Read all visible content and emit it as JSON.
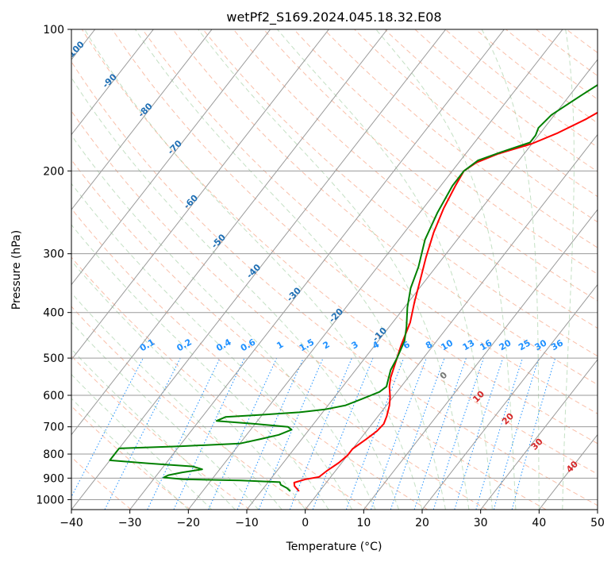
{
  "chart_data": {
    "type": "line",
    "title": "wetPf2_S169.2024.045.18.32.E08",
    "xlabel": "Temperature (°C)",
    "ylabel": "Pressure (hPa)",
    "xlim": [
      -40,
      50
    ],
    "ylim": [
      1050,
      100
    ],
    "y_scale": "log",
    "x_ticks": [
      "−40",
      "−30",
      "−20",
      "−10",
      "0",
      "10",
      "20",
      "30",
      "40",
      "50"
    ],
    "x_tick_values": [
      -40,
      -30,
      -20,
      -10,
      0,
      10,
      20,
      30,
      40,
      50
    ],
    "y_ticks": [
      "1000",
      "900",
      "800",
      "700",
      "600",
      "500",
      "400",
      "300",
      "200",
      "100"
    ],
    "y_tick_values": [
      1000,
      900,
      800,
      700,
      600,
      500,
      400,
      300,
      200,
      100
    ],
    "grid": true,
    "background_lines": {
      "isotherm_labels": [
        "-100",
        "-90",
        "-80",
        "-70",
        "-60",
        "-50",
        "-40",
        "-30",
        "-20",
        "-10"
      ],
      "isotherm_label_values": [
        -100,
        -90,
        -80,
        -70,
        -60,
        -50,
        -40,
        -30,
        -20,
        -10
      ],
      "mixing_ratio_labels": [
        "0.1",
        "0.2",
        "0.4",
        "0.6",
        "1",
        "1.5",
        "2",
        "3",
        "4",
        "6",
        "8",
        "10",
        "13",
        "16",
        "20",
        "25",
        "30",
        "36"
      ],
      "mixing_ratio_values": [
        0.1,
        0.2,
        0.4,
        0.6,
        1,
        1.5,
        2,
        3,
        4,
        6,
        8,
        10,
        13,
        16,
        20,
        25,
        30,
        36
      ],
      "moist_adiabat_labels": [
        "0",
        "10",
        "20",
        "30",
        "40"
      ],
      "moist_adiabat_values": [
        0,
        10,
        20,
        30,
        40
      ]
    },
    "series": [
      {
        "color": "#ff0000",
        "points": [
          [
            -3.5,
            960
          ],
          [
            -5,
            935
          ],
          [
            -5.5,
            920
          ],
          [
            -4,
            905
          ],
          [
            -2,
            895
          ],
          [
            -1.5,
            870
          ],
          [
            -0.5,
            835
          ],
          [
            0,
            805
          ],
          [
            0,
            780
          ],
          [
            1,
            745
          ],
          [
            1.8,
            715
          ],
          [
            2,
            690
          ],
          [
            1.5,
            665
          ],
          [
            0.5,
            630
          ],
          [
            -0.5,
            605
          ],
          [
            -2,
            575
          ],
          [
            -3,
            550
          ],
          [
            -4.5,
            500
          ],
          [
            -5.5,
            470
          ],
          [
            -7,
            420
          ],
          [
            -9,
            380
          ],
          [
            -11,
            340
          ],
          [
            -13,
            305
          ],
          [
            -15,
            270
          ],
          [
            -16.5,
            240
          ],
          [
            -17.5,
            215
          ],
          [
            -18,
            200
          ],
          [
            -17,
            192
          ],
          [
            -14.5,
            184
          ],
          [
            -10,
            175
          ],
          [
            -7,
            166
          ],
          [
            -4,
            155
          ],
          [
            -1,
            142
          ],
          [
            2,
            128
          ],
          [
            5,
            116
          ],
          [
            9,
            107
          ],
          [
            12,
            100
          ]
        ]
      },
      {
        "color": "#008000",
        "points": [
          [
            -5,
            960
          ],
          [
            -6,
            945
          ],
          [
            -7.5,
            930
          ],
          [
            -8,
            918
          ],
          [
            -15,
            910
          ],
          [
            -25,
            905
          ],
          [
            -28.5,
            897
          ],
          [
            -28,
            887
          ],
          [
            -26,
            875
          ],
          [
            -23,
            862
          ],
          [
            -25,
            850
          ],
          [
            -33,
            837
          ],
          [
            -40,
            825
          ],
          [
            -40,
            778
          ],
          [
            -30,
            770
          ],
          [
            -20,
            760
          ],
          [
            -17,
            743
          ],
          [
            -14.5,
            728
          ],
          [
            -13,
            710
          ],
          [
            -14,
            700
          ],
          [
            -20,
            690
          ],
          [
            -27,
            680
          ],
          [
            -26,
            667
          ],
          [
            -20,
            660
          ],
          [
            -14,
            652
          ],
          [
            -10,
            643
          ],
          [
            -7,
            630
          ],
          [
            -5,
            610
          ],
          [
            -3,
            590
          ],
          [
            -2.5,
            575
          ],
          [
            -3,
            560
          ],
          [
            -4,
            530
          ],
          [
            -4.5,
            500
          ],
          [
            -5.5,
            460
          ],
          [
            -7,
            430
          ],
          [
            -9.5,
            390
          ],
          [
            -11.5,
            355
          ],
          [
            -13,
            320
          ],
          [
            -15.5,
            280
          ],
          [
            -17,
            245
          ],
          [
            -18,
            215
          ],
          [
            -18,
            200
          ],
          [
            -17,
            190
          ],
          [
            -14,
            182
          ],
          [
            -10.5,
            174
          ],
          [
            -10.5,
            168
          ],
          [
            -11,
            162
          ],
          [
            -10.5,
            152
          ],
          [
            -8,
            138
          ],
          [
            -5,
            124
          ],
          [
            -2,
            114
          ],
          [
            1,
            105
          ],
          [
            3,
            100
          ]
        ]
      }
    ]
  }
}
